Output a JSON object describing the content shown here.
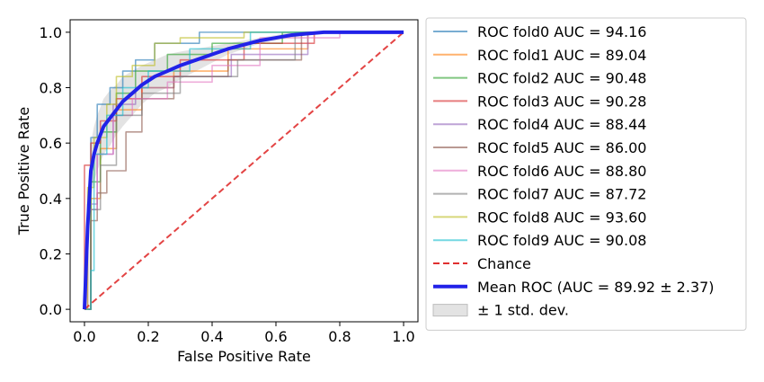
{
  "chart_data": {
    "type": "line",
    "title": "",
    "xlabel": "False Positive Rate",
    "ylabel": "True Positive Rate",
    "xlim": [
      0,
      1
    ],
    "ylim": [
      0,
      1
    ],
    "xticks": [
      "0.0",
      "0.2",
      "0.4",
      "0.6",
      "0.8",
      "1.0"
    ],
    "yticks": [
      "0.0",
      "0.2",
      "0.4",
      "0.6",
      "0.8",
      "1.0"
    ],
    "grid": false,
    "legend_position": "right",
    "series": [
      {
        "name": "ROC fold0 AUC = 94.16",
        "color": "#1f77b4",
        "x": [
          0,
          0.02,
          0.02,
          0.04,
          0.04,
          0.08,
          0.08,
          0.12,
          0.12,
          0.16,
          0.16,
          0.22,
          0.22,
          0.36,
          0.36,
          1.0
        ],
        "y": [
          0,
          0,
          0.62,
          0.62,
          0.74,
          0.74,
          0.8,
          0.8,
          0.86,
          0.86,
          0.9,
          0.9,
          0.96,
          0.96,
          1.0,
          1.0
        ]
      },
      {
        "name": "ROC fold1 AUC = 89.04",
        "color": "#ff7f0e",
        "x": [
          0,
          0.02,
          0.02,
          0.05,
          0.05,
          0.1,
          0.1,
          0.18,
          0.18,
          0.28,
          0.28,
          0.45,
          0.45,
          0.7,
          0.7,
          1.0
        ],
        "y": [
          0,
          0,
          0.4,
          0.4,
          0.58,
          0.58,
          0.72,
          0.72,
          0.8,
          0.8,
          0.86,
          0.86,
          0.94,
          0.94,
          1.0,
          1.0
        ]
      },
      {
        "name": "ROC fold2 AUC = 90.48",
        "color": "#2ca02c",
        "x": [
          0,
          0.02,
          0.02,
          0.05,
          0.05,
          0.1,
          0.1,
          0.16,
          0.16,
          0.26,
          0.26,
          0.4,
          0.4,
          0.62,
          0.62,
          1.0
        ],
        "y": [
          0,
          0,
          0.46,
          0.46,
          0.64,
          0.64,
          0.78,
          0.78,
          0.86,
          0.86,
          0.92,
          0.92,
          0.96,
          0.96,
          1.0,
          1.0
        ]
      },
      {
        "name": "ROC fold3 AUC = 90.28",
        "color": "#d62728",
        "x": [
          0,
          0.0,
          0.02,
          0.02,
          0.05,
          0.05,
          0.1,
          0.1,
          0.18,
          0.18,
          0.3,
          0.3,
          0.5,
          0.5,
          0.72,
          0.72,
          1.0
        ],
        "y": [
          0,
          0.52,
          0.52,
          0.6,
          0.6,
          0.68,
          0.68,
          0.76,
          0.76,
          0.84,
          0.84,
          0.9,
          0.9,
          0.96,
          0.96,
          1.0,
          1.0
        ]
      },
      {
        "name": "ROC fold4 AUC = 88.44",
        "color": "#9467bd",
        "x": [
          0,
          0.01,
          0.01,
          0.04,
          0.04,
          0.09,
          0.09,
          0.16,
          0.16,
          0.28,
          0.28,
          0.46,
          0.46,
          0.7,
          0.7,
          1.0
        ],
        "y": [
          0,
          0,
          0.38,
          0.38,
          0.56,
          0.56,
          0.74,
          0.74,
          0.8,
          0.8,
          0.84,
          0.84,
          0.92,
          0.92,
          1.0,
          1.0
        ]
      },
      {
        "name": "ROC fold5 AUC = 86.00",
        "color": "#8c564b",
        "x": [
          0,
          0.02,
          0.02,
          0.04,
          0.04,
          0.07,
          0.07,
          0.13,
          0.13,
          0.18,
          0.18,
          0.28,
          0.28,
          0.45,
          0.45,
          0.68,
          0.68,
          1.0
        ],
        "y": [
          0,
          0,
          0.32,
          0.32,
          0.42,
          0.42,
          0.5,
          0.5,
          0.64,
          0.64,
          0.76,
          0.76,
          0.84,
          0.84,
          0.9,
          0.9,
          1.0,
          1.0
        ]
      },
      {
        "name": "ROC fold6 AUC = 88.80",
        "color": "#e377c2",
        "x": [
          0,
          0.01,
          0.01,
          0.04,
          0.04,
          0.09,
          0.09,
          0.15,
          0.15,
          0.26,
          0.26,
          0.4,
          0.4,
          0.55,
          0.55,
          0.8,
          0.8,
          1.0
        ],
        "y": [
          0,
          0,
          0.36,
          0.36,
          0.56,
          0.56,
          0.7,
          0.7,
          0.76,
          0.76,
          0.82,
          0.82,
          0.88,
          0.88,
          0.98,
          0.98,
          1.0,
          1.0
        ]
      },
      {
        "name": "ROC fold7 AUC = 87.72",
        "color": "#7f7f7f",
        "x": [
          0,
          0.02,
          0.02,
          0.05,
          0.05,
          0.1,
          0.1,
          0.18,
          0.18,
          0.3,
          0.3,
          0.48,
          0.48,
          0.66,
          0.66,
          1.0
        ],
        "y": [
          0,
          0,
          0.36,
          0.36,
          0.52,
          0.52,
          0.7,
          0.7,
          0.78,
          0.78,
          0.84,
          0.84,
          0.9,
          0.9,
          1.0,
          1.0
        ]
      },
      {
        "name": "ROC fold8 AUC = 93.60",
        "color": "#bcbd22",
        "x": [
          0,
          0.01,
          0.01,
          0.03,
          0.03,
          0.07,
          0.07,
          0.1,
          0.1,
          0.15,
          0.15,
          0.22,
          0.22,
          0.3,
          0.3,
          0.5,
          0.5,
          1.0
        ],
        "y": [
          0,
          0,
          0.44,
          0.44,
          0.62,
          0.62,
          0.74,
          0.74,
          0.84,
          0.84,
          0.88,
          0.88,
          0.96,
          0.96,
          0.98,
          0.98,
          1.0,
          1.0
        ]
      },
      {
        "name": "ROC fold9 AUC = 90.08",
        "color": "#17becf",
        "x": [
          0,
          0.02,
          0.02,
          0.03,
          0.03,
          0.07,
          0.07,
          0.12,
          0.12,
          0.2,
          0.2,
          0.33,
          0.33,
          0.52,
          0.52,
          1.0
        ],
        "y": [
          0,
          0,
          0.14,
          0.14,
          0.56,
          0.56,
          0.7,
          0.7,
          0.8,
          0.8,
          0.86,
          0.86,
          0.94,
          0.94,
          1.0,
          1.0
        ]
      },
      {
        "name": "Chance",
        "color": "#e03030",
        "dashed": true,
        "x": [
          0,
          1
        ],
        "y": [
          0,
          1
        ]
      },
      {
        "name": "Mean ROC (AUC = 89.92 ± 2.37)",
        "color": "#2222e8",
        "bold": true,
        "x": [
          0,
          0.01,
          0.02,
          0.03,
          0.04,
          0.05,
          0.06,
          0.08,
          0.1,
          0.12,
          0.15,
          0.18,
          0.22,
          0.26,
          0.3,
          0.35,
          0.4,
          0.45,
          0.5,
          0.55,
          0.6,
          0.65,
          0.7,
          0.75,
          0.8,
          0.9,
          1.0
        ],
        "y": [
          0,
          0.3,
          0.5,
          0.56,
          0.6,
          0.63,
          0.66,
          0.69,
          0.72,
          0.75,
          0.78,
          0.81,
          0.84,
          0.86,
          0.88,
          0.9,
          0.92,
          0.94,
          0.955,
          0.97,
          0.98,
          0.99,
          0.995,
          1.0,
          1.0,
          1.0,
          1.0
        ]
      }
    ],
    "std_band": {
      "name": "± 1 std. dev.",
      "color": "#c8c8c8",
      "x": [
        0,
        0.01,
        0.02,
        0.03,
        0.04,
        0.05,
        0.06,
        0.08,
        0.1,
        0.12,
        0.15,
        0.18,
        0.22,
        0.26,
        0.3,
        0.35,
        0.4,
        0.45,
        0.5,
        0.55,
        0.6,
        0.65,
        0.7,
        0.75,
        0.8,
        0.9,
        1.0
      ],
      "upper": [
        0,
        0.4,
        0.6,
        0.66,
        0.7,
        0.73,
        0.76,
        0.79,
        0.81,
        0.84,
        0.86,
        0.88,
        0.9,
        0.92,
        0.93,
        0.94,
        0.95,
        0.96,
        0.97,
        0.98,
        0.99,
        1.0,
        1.0,
        1.0,
        1.0,
        1.0,
        1.0
      ],
      "lower": [
        0,
        0.2,
        0.4,
        0.46,
        0.5,
        0.53,
        0.56,
        0.59,
        0.63,
        0.66,
        0.7,
        0.74,
        0.78,
        0.8,
        0.83,
        0.86,
        0.89,
        0.92,
        0.94,
        0.96,
        0.97,
        0.98,
        0.99,
        1.0,
        1.0,
        1.0,
        1.0
      ]
    }
  }
}
